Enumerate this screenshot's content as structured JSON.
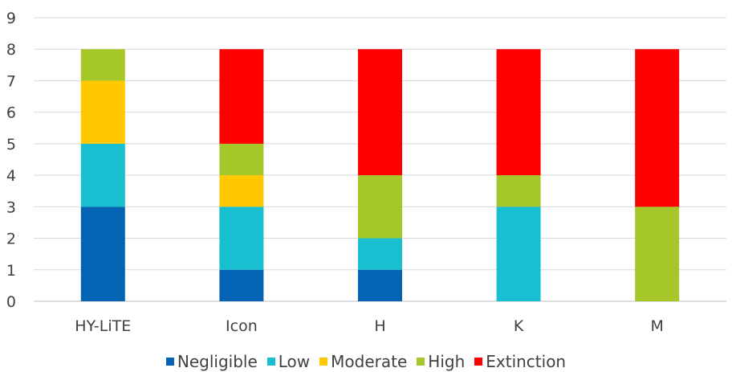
{
  "chart_data": {
    "type": "bar",
    "stacked": true,
    "categories": [
      "HY-LiTE",
      "Icon",
      "H",
      "K",
      "M"
    ],
    "series": [
      {
        "name": "Negligible",
        "color": "#0563B4",
        "values": [
          3,
          1,
          1,
          0,
          0
        ]
      },
      {
        "name": "Low",
        "color": "#17BFD0",
        "values": [
          2,
          2,
          1,
          3,
          0
        ]
      },
      {
        "name": "Moderate",
        "color": "#FFC800",
        "values": [
          2,
          1,
          0,
          0,
          0
        ]
      },
      {
        "name": "High",
        "color": "#A6C72A",
        "values": [
          1,
          1,
          2,
          1,
          3
        ]
      },
      {
        "name": "Extinction",
        "color": "#FF0000",
        "values": [
          0,
          3,
          4,
          4,
          5
        ]
      }
    ],
    "ylim": [
      0,
      9
    ],
    "yticks": [
      "0",
      "1",
      "2",
      "3",
      "4",
      "5",
      "6",
      "7",
      "8",
      "9"
    ],
    "grid": true,
    "legend_position": "bottom"
  }
}
